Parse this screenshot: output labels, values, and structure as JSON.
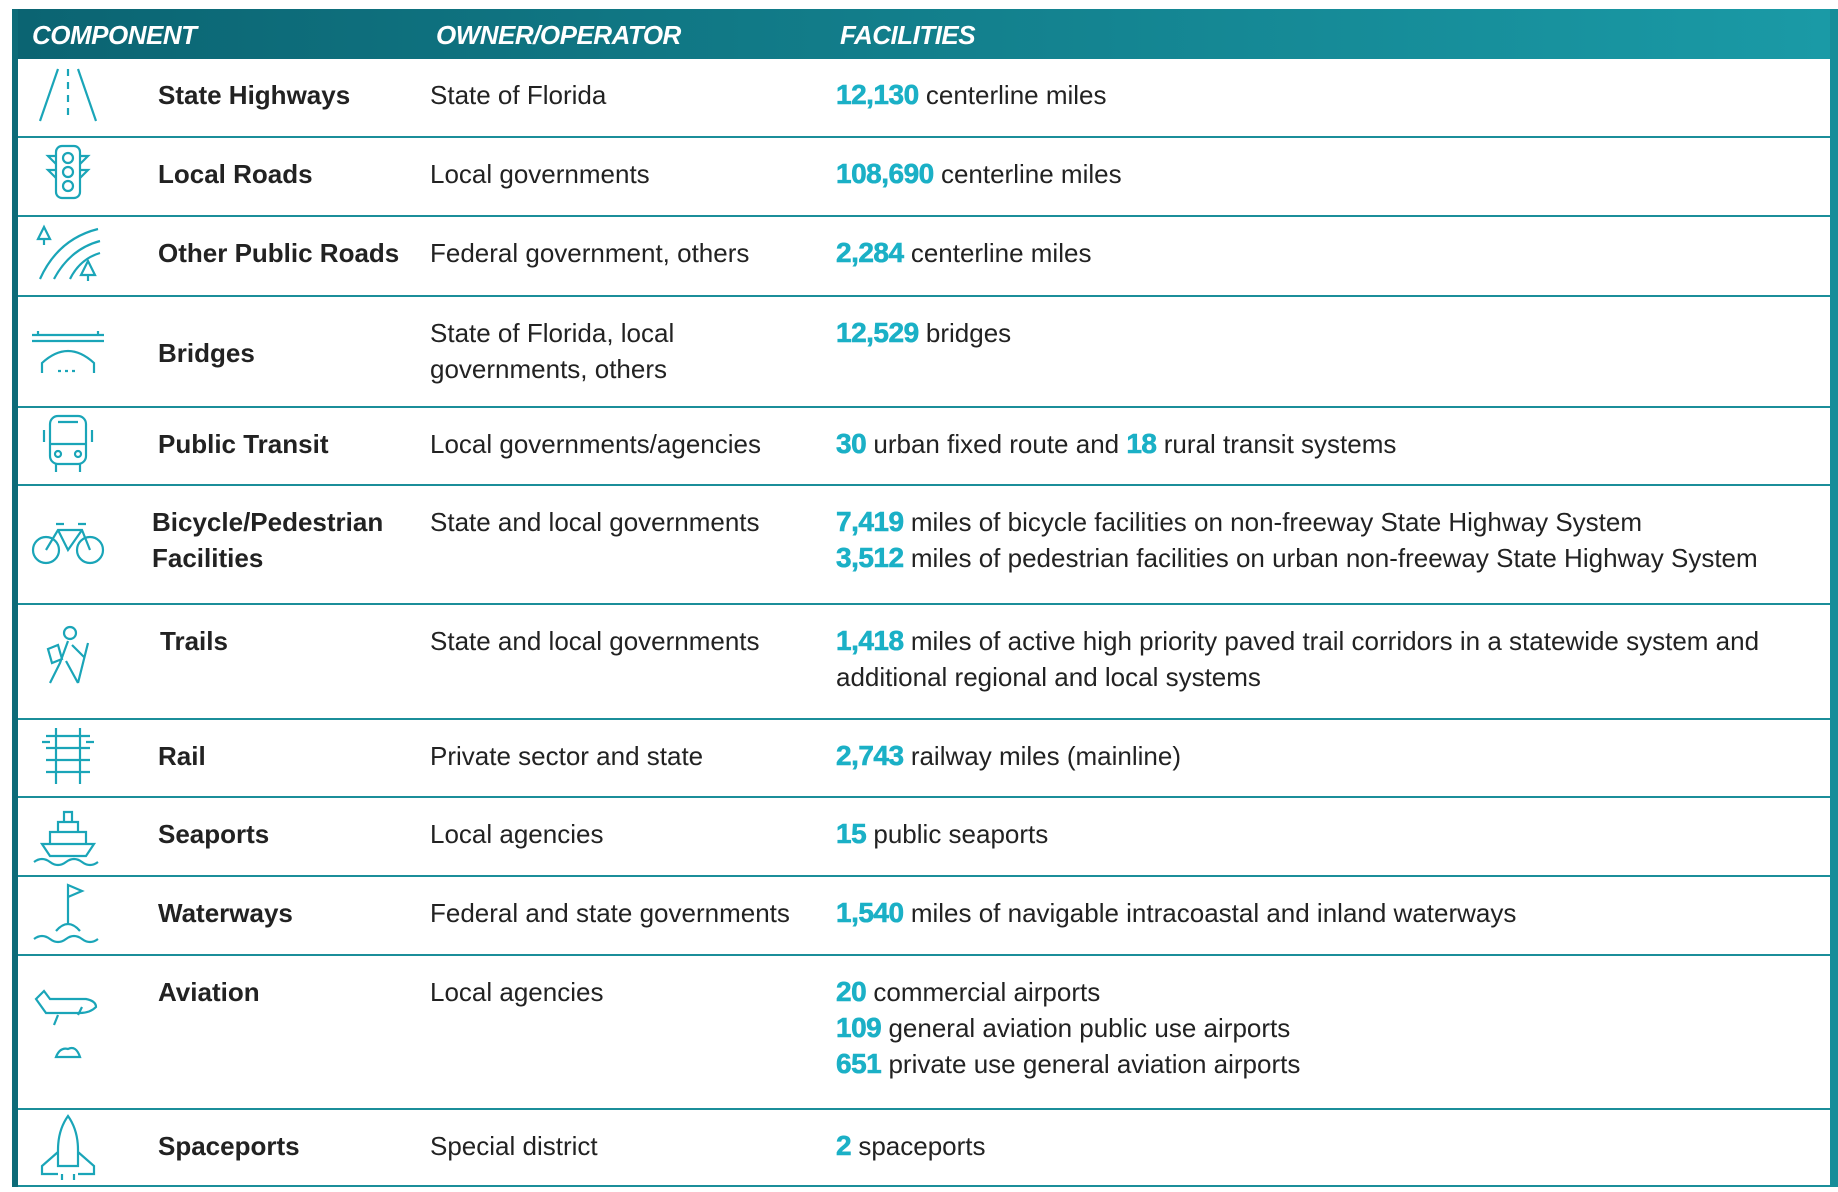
{
  "table": {
    "headers": [
      "COMPONENT",
      "OWNER/OPERATOR",
      "FACILITIES"
    ],
    "rows": [
      {
        "component": "State Highways",
        "owner": "State of Florida",
        "facilities": [
          [
            {
              "n": "12,130"
            },
            {
              "t": "centerline miles"
            }
          ]
        ]
      },
      {
        "component": "Local Roads",
        "owner": "Local governments",
        "facilities": [
          [
            {
              "n": "108,690"
            },
            {
              "t": "centerline miles"
            }
          ]
        ]
      },
      {
        "component": "Other Public Roads",
        "owner": "Federal government, others",
        "facilities": [
          [
            {
              "n": "2,284"
            },
            {
              "t": "centerline miles"
            }
          ]
        ]
      },
      {
        "component": "Bridges",
        "owner": "State of Florida, local governments, others",
        "facilities": [
          [
            {
              "n": "12,529"
            },
            {
              "t": "bridges"
            }
          ]
        ]
      },
      {
        "component": "Public Transit",
        "owner": "Local governments/agencies",
        "facilities": [
          [
            {
              "n": "30"
            },
            {
              "t": "urban fixed route and"
            },
            {
              "n": "18"
            },
            {
              "t": "rural transit systems"
            }
          ]
        ]
      },
      {
        "component": "Bicycle/Pedestrian Facilities",
        "owner": "State and local governments",
        "facilities": [
          [
            {
              "n": "7,419"
            },
            {
              "t": "miles of bicycle facilities on non-freeway State Highway System"
            }
          ],
          [
            {
              "n": "3,512"
            },
            {
              "t": "miles of pedestrian facilities on urban non-freeway State Highway System"
            }
          ]
        ]
      },
      {
        "component": "Trails",
        "owner": "State and local governments",
        "facilities": [
          [
            {
              "n": "1,418"
            },
            {
              "t": "miles of active high priority paved trail corridors in a statewide system and additional regional and local systems"
            }
          ]
        ]
      },
      {
        "component": "Rail",
        "owner": "Private sector and state",
        "facilities": [
          [
            {
              "n": "2,743"
            },
            {
              "t": "railway miles (mainline)"
            }
          ]
        ]
      },
      {
        "component": "Seaports",
        "owner": "Local agencies",
        "facilities": [
          [
            {
              "n": "15"
            },
            {
              "t": "public seaports"
            }
          ]
        ]
      },
      {
        "component": "Waterways",
        "owner": "Federal and state governments",
        "facilities": [
          [
            {
              "n": "1,540"
            },
            {
              "t": "miles of navigable intracoastal and inland waterways"
            }
          ]
        ]
      },
      {
        "component": "Aviation",
        "owner": "Local agencies",
        "facilities": [
          [
            {
              "n": "20"
            },
            {
              "t": "commercial airports"
            }
          ],
          [
            {
              "n": "109"
            },
            {
              "t": "general aviation public use airports"
            }
          ],
          [
            {
              "n": "651"
            },
            {
              "t": "private use general aviation airports"
            }
          ]
        ]
      },
      {
        "component": "Spaceports",
        "owner": "Special district",
        "facilities": [
          [
            {
              "n": "2"
            },
            {
              "t": "spaceports"
            }
          ]
        ]
      }
    ]
  }
}
